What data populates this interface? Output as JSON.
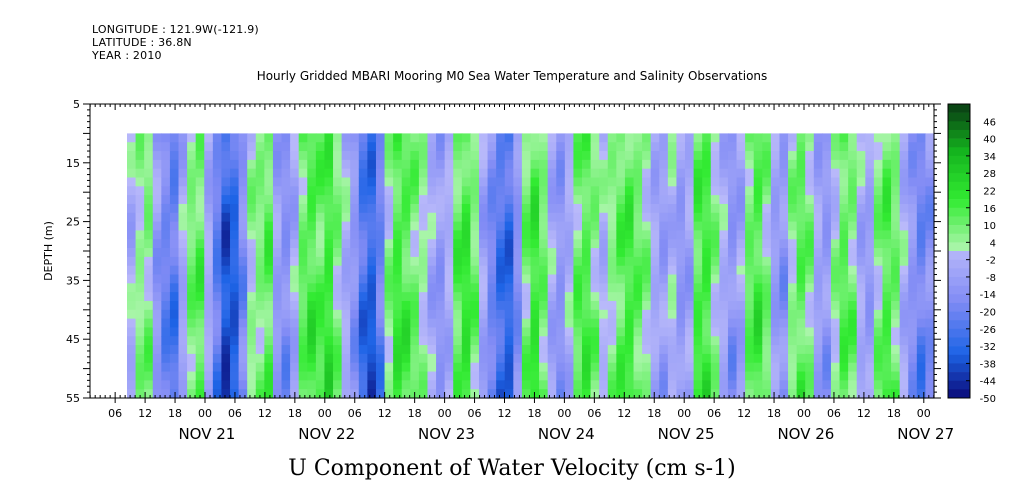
{
  "header": {
    "longitude": "LONGITUDE : 121.9W(-121.9)",
    "latitude": "LATITUDE : 36.8N",
    "year": "YEAR : 2010"
  },
  "chart_data": {
    "type": "heatmap",
    "title": "Hourly Gridded MBARI Mooring M0 Sea Water Temperature and Salinity Observations",
    "xlabel": "U Component of Water Velocity (cm s-1)",
    "ylabel": "DEPTH (m)",
    "ylim": [
      5,
      55
    ],
    "y_ticks": [
      5,
      15,
      25,
      35,
      45,
      55
    ],
    "x_hour_ticks": [
      "06",
      "12",
      "18",
      "00",
      "06",
      "12",
      "18",
      "00",
      "06",
      "12",
      "18",
      "00",
      "06",
      "12",
      "18",
      "00",
      "06",
      "12",
      "18",
      "00",
      "06",
      "12",
      "18",
      "00",
      "06",
      "12",
      "18",
      "00"
    ],
    "x_day_labels": [
      "NOV 21",
      "NOV 22",
      "NOV 23",
      "NOV 24",
      "NOV 25",
      "NOV 26",
      "NOV 27"
    ],
    "data_depth_range": [
      10,
      55
    ],
    "colorbar_labels": [
      "46",
      "40",
      "34",
      "28",
      "22",
      "16",
      "10",
      "4",
      "-2",
      "-8",
      "-14",
      "-20",
      "-26",
      "-32",
      "-38",
      "-44",
      "-50"
    ],
    "colorbar_range": [
      -50,
      52
    ],
    "u_velocity_by_column": [
      -4,
      6,
      8,
      -12,
      -22,
      -26,
      -6,
      10,
      14,
      -6,
      -24,
      -40,
      -36,
      -18,
      4,
      8,
      14,
      -10,
      -16,
      -6,
      12,
      18,
      14,
      20,
      8,
      -4,
      -14,
      -30,
      -36,
      -22,
      6,
      18,
      16,
      10,
      4,
      -6,
      -12,
      -4,
      14,
      20,
      10,
      -8,
      -20,
      -30,
      -34,
      -16,
      10,
      20,
      10,
      -6,
      -14,
      -4,
      12,
      16,
      8,
      -2,
      6,
      14,
      18,
      12,
      6,
      -6,
      -10,
      -2,
      -12,
      -8,
      16,
      18,
      6,
      -4,
      -14,
      -8,
      12,
      18,
      8,
      -10,
      -14,
      6,
      14,
      8,
      -8,
      -12,
      4,
      14,
      10,
      -6,
      -10,
      8,
      16,
      10,
      -4,
      -14,
      -22,
      -16
    ]
  }
}
